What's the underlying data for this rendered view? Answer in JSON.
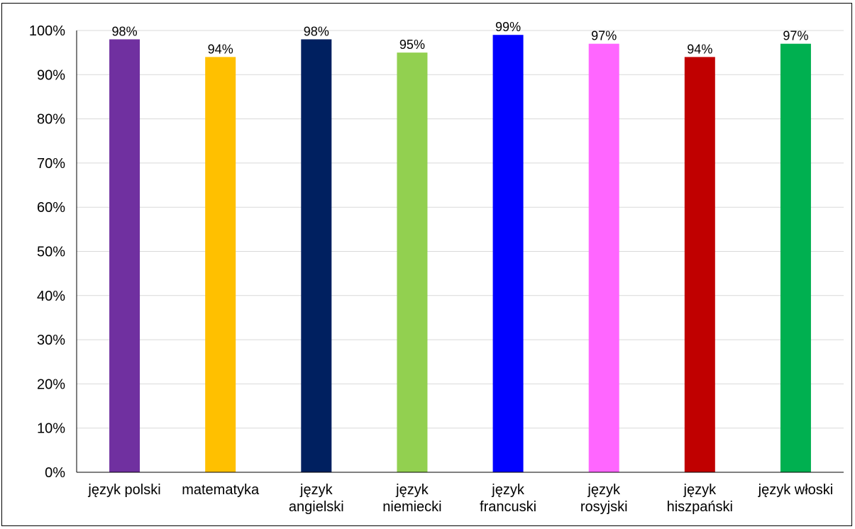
{
  "chart_data": {
    "type": "bar",
    "categories": [
      [
        "język polski"
      ],
      [
        "matematyka"
      ],
      [
        "język",
        "angielski"
      ],
      [
        "język",
        "niemiecki"
      ],
      [
        "język",
        "francuski"
      ],
      [
        "język",
        "rosyjski"
      ],
      [
        "język",
        "hiszpański"
      ],
      [
        "język włoski"
      ]
    ],
    "values": [
      98,
      94,
      98,
      95,
      99,
      97,
      94,
      97
    ],
    "value_labels": [
      "98%",
      "94%",
      "98%",
      "95%",
      "99%",
      "97%",
      "94%",
      "97%"
    ],
    "colors": [
      "#7030A0",
      "#FFC000",
      "#002060",
      "#92D050",
      "#0000FF",
      "#FF66FF",
      "#C00000",
      "#00B050"
    ],
    "y_ticks": [
      "0%",
      "10%",
      "20%",
      "30%",
      "40%",
      "50%",
      "60%",
      "70%",
      "80%",
      "90%",
      "100%"
    ],
    "ylim": [
      0,
      100
    ],
    "grid": true,
    "legend": "none",
    "title": "",
    "xlabel": "",
    "ylabel": ""
  }
}
